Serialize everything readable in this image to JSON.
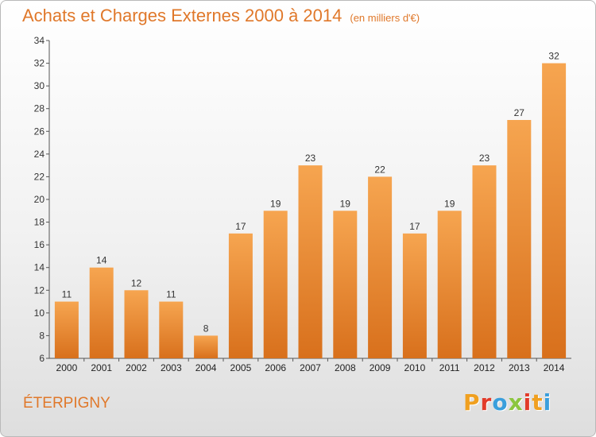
{
  "header": {
    "title": "Achats et Charges Externes 2000 à 2014",
    "subtitle": "(en milliers d'€)"
  },
  "footer": {
    "city": "ÉTERPIGNY",
    "logo_text": "Proxiti",
    "logo_colors": [
      "#f0a020",
      "#e23b2a",
      "#3a9fdc",
      "#8cc63f",
      "#e23b2a",
      "#f0a020",
      "#3a9fdc"
    ]
  },
  "colors": {
    "bar_top": "#f6a550",
    "bar_bottom": "#d8701c",
    "title": "#e0782a"
  },
  "chart_data": {
    "type": "bar",
    "categories": [
      "2000",
      "2001",
      "2002",
      "2003",
      "2004",
      "2005",
      "2006",
      "2007",
      "2008",
      "2009",
      "2010",
      "2011",
      "2012",
      "2013",
      "2014"
    ],
    "values": [
      11,
      14,
      12,
      11,
      8,
      17,
      19,
      23,
      19,
      22,
      17,
      19,
      23,
      27,
      32
    ],
    "data_labels": [
      "11",
      "14",
      "12",
      "11",
      "8",
      "17",
      "19",
      "23",
      "19",
      "22",
      "17",
      "19",
      "23",
      "27",
      "32"
    ],
    "ylim": [
      6,
      34
    ],
    "yticks": [
      "6",
      "8",
      "10",
      "12",
      "14",
      "16",
      "18",
      "20",
      "22",
      "24",
      "26",
      "28",
      "30",
      "32",
      "34"
    ],
    "grid": false,
    "xlabel": "",
    "ylabel": ""
  }
}
